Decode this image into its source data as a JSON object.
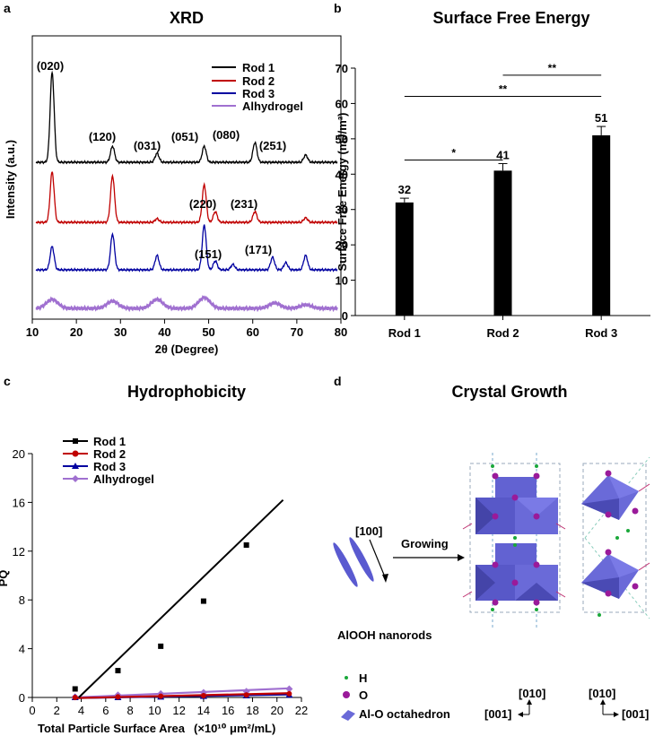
{
  "panels": {
    "a": {
      "letter": "a",
      "title": "XRD"
    },
    "b": {
      "letter": "b",
      "title": "Surface Free Energy"
    },
    "c": {
      "letter": "c",
      "title": "Hydrophobicity"
    },
    "d": {
      "letter": "d",
      "title": "Crystal Growth"
    }
  },
  "colors": {
    "rod1": "#000000",
    "rod2": "#c00000",
    "rod3": "#0000a0",
    "alhydrogel": "#a070d0",
    "octahedron": "#6a6ad8",
    "oxygen": "#9a1a9a",
    "hydrogen": "#1aa83a"
  },
  "chart_data": [
    {
      "type": "line",
      "title": "XRD",
      "xlabel": "2θ (Degree)",
      "ylabel": "Intensity (a.u.)",
      "xlim": [
        10,
        80
      ],
      "x_ticks": [
        "10",
        "20",
        "30",
        "40",
        "50",
        "60",
        "70",
        "80"
      ],
      "series": [
        {
          "name": "Rod 1",
          "peaks_2theta": [
            14.5,
            28.2,
            38.3,
            49.0,
            60.5,
            72.0
          ]
        },
        {
          "name": "Rod 2",
          "peaks_2theta": [
            14.5,
            28.2,
            38.3,
            49.0,
            51.5,
            60.5,
            72.0
          ]
        },
        {
          "name": "Rod 3",
          "peaks_2theta": [
            14.5,
            28.2,
            38.3,
            49.0,
            51.5,
            55.5,
            64.5,
            67.5,
            72.0
          ]
        },
        {
          "name": "Alhydrogel",
          "peaks_2theta": [
            14.5,
            28.2,
            38.3,
            49.0,
            65.0,
            72.0
          ]
        }
      ],
      "annotations": [
        "(020)",
        "(120)",
        "(031)",
        "(051)",
        "(080)",
        "(251)",
        "(220)",
        "(231)",
        "(151)",
        "(171)"
      ]
    },
    {
      "type": "bar",
      "title": "Surface Free Energy",
      "xlabel": "",
      "ylabel": "Surface Free Energy (mJ/m²)",
      "ylim": [
        0,
        70
      ],
      "y_ticks": [
        "0",
        "10",
        "20",
        "30",
        "40",
        "50",
        "60",
        "70"
      ],
      "categories": [
        "Rod 1",
        "Rod 2",
        "Rod 3"
      ],
      "values": [
        32,
        41,
        51
      ],
      "errors": [
        1.2,
        2.0,
        2.5
      ],
      "value_labels": [
        "32",
        "41",
        "51"
      ],
      "significance": [
        {
          "from": "Rod 1",
          "to": "Rod 2",
          "label": "*"
        },
        {
          "from": "Rod 1",
          "to": "Rod 3",
          "label": "**"
        },
        {
          "from": "Rod 2",
          "to": "Rod 3",
          "label": "**"
        }
      ]
    },
    {
      "type": "scatter",
      "title": "Hydrophobicity",
      "xlabel": "Total Particle Surface Area",
      "xunit": "(×10¹⁰ μm²/mL)",
      "ylabel": "PQ",
      "xlim": [
        0,
        22
      ],
      "ylim": [
        0,
        20
      ],
      "x_ticks": [
        "0",
        "2",
        "4",
        "6",
        "8",
        "10",
        "12",
        "14",
        "16",
        "18",
        "20",
        "22"
      ],
      "y_ticks": [
        "0",
        "4",
        "8",
        "12",
        "16",
        "20"
      ],
      "series": [
        {
          "name": "Rod 1",
          "x": [
            3.5,
            7.0,
            10.5,
            14.0,
            17.5
          ],
          "y": [
            0.7,
            2.2,
            4.2,
            7.9,
            12.5
          ],
          "fit": [
            [
              3.8,
              0
            ],
            [
              20.5,
              16.2
            ]
          ]
        },
        {
          "name": "Rod 2",
          "x": [
            3.5,
            7.0,
            10.5,
            14.0,
            17.5,
            21.0
          ],
          "y": [
            0.0,
            0.05,
            0.1,
            0.15,
            0.2,
            0.3
          ],
          "fit": [
            [
              3.5,
              -0.05
            ],
            [
              21.0,
              0.35
            ]
          ]
        },
        {
          "name": "Rod 3",
          "x": [
            3.5,
            7.0,
            10.5,
            14.0,
            17.5,
            21.0
          ],
          "y": [
            0.0,
            0.0,
            0.05,
            0.1,
            0.15,
            0.2
          ],
          "fit": [
            [
              3.5,
              -0.05
            ],
            [
              21.0,
              0.25
            ]
          ]
        },
        {
          "name": "Alhydrogel",
          "x": [
            3.5,
            7.0,
            10.5,
            14.0,
            17.5,
            21.0
          ],
          "y": [
            0.05,
            0.2,
            0.3,
            0.4,
            0.5,
            0.7
          ],
          "fit": [
            [
              3.5,
              0.0
            ],
            [
              21.0,
              0.75
            ]
          ]
        }
      ]
    }
  ],
  "diagram": {
    "direction_label": "[100]",
    "growing_label": "Growing",
    "nanorods_label": "AlOOH  nanorods",
    "legend": [
      {
        "key": "h",
        "label": "H"
      },
      {
        "key": "o",
        "label": "O"
      },
      {
        "key": "oct",
        "label": "Al-O octahedron"
      }
    ],
    "axes_left": {
      "up": "[010]",
      "side": "[001]"
    },
    "axes_right": {
      "up": "[010]",
      "side": "[001]"
    }
  }
}
